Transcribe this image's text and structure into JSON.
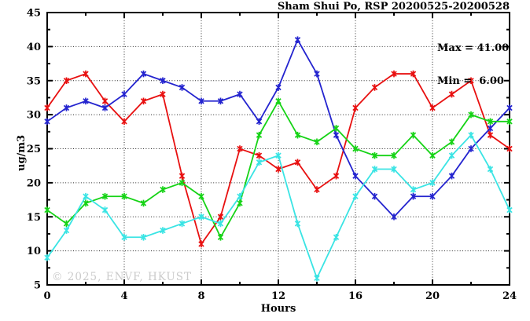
{
  "title": "Sham Shui Po, RSP 20200525-20200528",
  "watermark": "© 2025, ENVF, HKUST",
  "chart_data": {
    "type": "line",
    "title": "Sham Shui Po, RSP 20200525-20200528",
    "xlabel": "Hours",
    "ylabel": "ug/m3",
    "xlim": [
      0,
      24
    ],
    "ylim": [
      5,
      45
    ],
    "xticks": [
      0,
      4,
      8,
      12,
      16,
      20,
      24
    ],
    "yticks": [
      5,
      10,
      15,
      20,
      25,
      30,
      35,
      40,
      45
    ],
    "x_minor_step": 2,
    "y_minor_step": 2.5,
    "grid": true,
    "marker": "asterisk",
    "legend_position": "none",
    "annotations": [
      "Max = 41.00",
      "Min =  6.00"
    ],
    "x": [
      0,
      1,
      2,
      3,
      4,
      5,
      6,
      7,
      8,
      9,
      10,
      11,
      12,
      13,
      14,
      15,
      16,
      17,
      18,
      19,
      20,
      21,
      22,
      23,
      24
    ],
    "series": [
      {
        "name": "series-red",
        "color": "#e81010",
        "values": [
          31,
          35,
          36,
          32,
          29,
          32,
          33,
          21,
          11,
          15,
          25,
          24,
          22,
          23,
          19,
          21,
          31,
          34,
          36,
          36,
          31,
          33,
          35,
          27,
          25
        ]
      },
      {
        "name": "series-blue",
        "color": "#2424cf",
        "values": [
          29,
          31,
          32,
          31,
          33,
          36,
          35,
          34,
          32,
          32,
          33,
          29,
          34,
          41,
          36,
          27,
          21,
          18,
          15,
          18,
          18,
          21,
          25,
          28,
          31
        ]
      },
      {
        "name": "series-green",
        "color": "#16d316",
        "values": [
          16,
          14,
          17,
          18,
          18,
          17,
          19,
          20,
          18,
          12,
          17,
          27,
          32,
          27,
          26,
          28,
          25,
          24,
          24,
          27,
          24,
          26,
          30,
          29,
          29
        ]
      },
      {
        "name": "series-cyan",
        "color": "#3ae4e4",
        "values": [
          9,
          13,
          18,
          16,
          12,
          12,
          13,
          14,
          15,
          14,
          18,
          23,
          24,
          14,
          6,
          12,
          18,
          22,
          22,
          19,
          20,
          24,
          27,
          22,
          16
        ]
      }
    ]
  }
}
